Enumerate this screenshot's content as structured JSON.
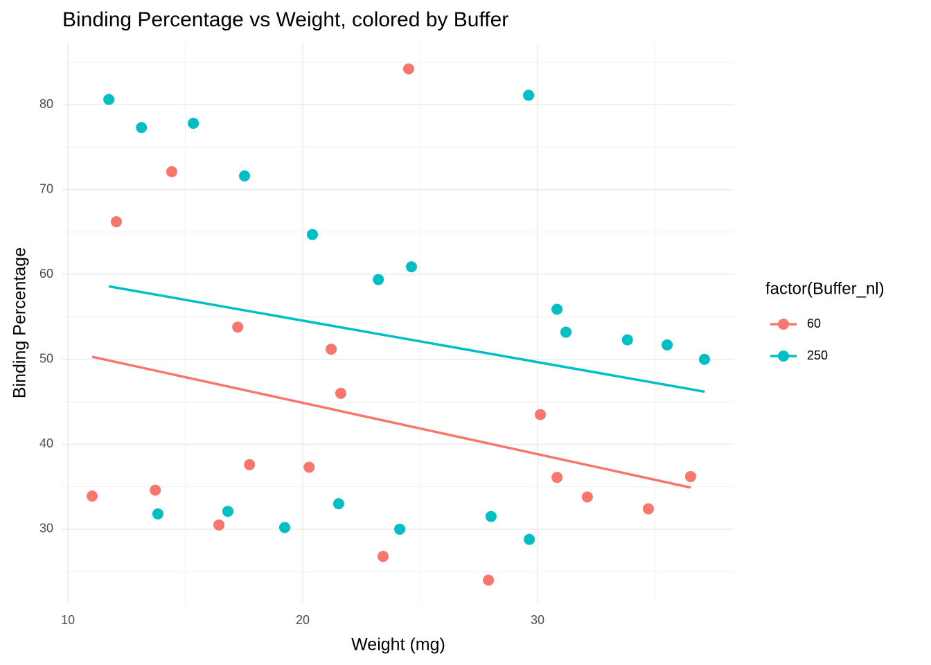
{
  "chart_data": {
    "type": "scatter",
    "title": "Binding Percentage vs Weight, colored by Buffer",
    "x_label": "Weight (mg)",
    "y_label": "Binding Percentage",
    "legend_title": "factor(Buffer_nl)",
    "legend_position": "right",
    "xlim": [
      9.76,
      38.38
    ],
    "ylim": [
      21.35,
      87.26
    ],
    "xticks": [
      10,
      20,
      30
    ],
    "yticks": [
      30,
      40,
      50,
      60,
      70,
      80
    ],
    "xminor_ticks": [
      15,
      25,
      35
    ],
    "yminor_ticks": [
      25,
      35,
      45,
      55,
      65,
      75,
      85
    ],
    "grid": true,
    "series": [
      {
        "name": "60",
        "color": "#F8766D",
        "x": [
          11.03,
          12.06,
          13.72,
          14.42,
          16.43,
          17.23,
          17.73,
          20.27,
          21.21,
          21.62,
          23.42,
          24.51,
          27.91,
          30.12,
          30.83,
          32.12,
          34.72,
          36.52
        ],
        "values": [
          33.9,
          66.2,
          34.6,
          72.1,
          30.5,
          53.8,
          37.6,
          37.3,
          51.2,
          46.0,
          26.8,
          84.2,
          24.0,
          43.5,
          36.1,
          33.8,
          32.4,
          36.2
        ],
        "trend_x": [
          11.03,
          36.52
        ],
        "trend_values": [
          50.3,
          34.9
        ]
      },
      {
        "name": "250",
        "color": "#00BFC4",
        "x": [
          11.74,
          13.13,
          13.83,
          15.34,
          16.81,
          17.52,
          19.23,
          20.41,
          21.53,
          23.22,
          24.13,
          24.63,
          28.02,
          29.62,
          29.65,
          30.83,
          31.21,
          33.83,
          35.52,
          37.11
        ],
        "values": [
          80.6,
          77.3,
          31.8,
          77.8,
          32.1,
          71.6,
          30.2,
          64.7,
          33.0,
          59.4,
          30.0,
          60.9,
          31.5,
          81.1,
          28.8,
          55.9,
          53.2,
          52.3,
          51.7,
          50.0
        ],
        "trend_x": [
          11.74,
          37.11
        ],
        "trend_values": [
          58.6,
          46.2
        ]
      }
    ]
  }
}
